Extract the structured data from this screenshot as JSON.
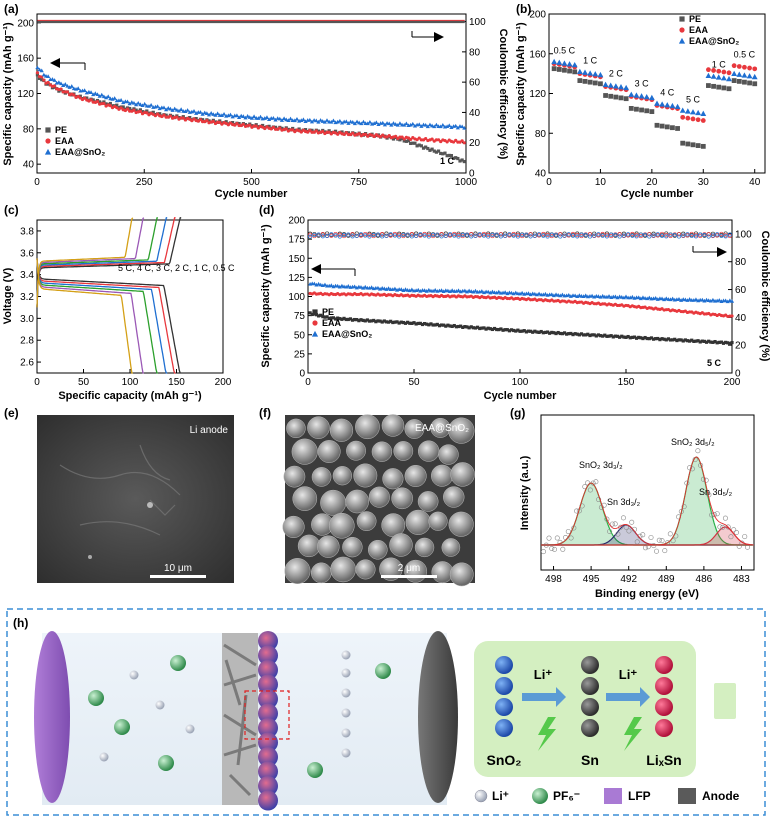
{
  "panels": {
    "a": {
      "label": "(a)"
    },
    "b": {
      "label": "(b)"
    },
    "c": {
      "label": "(c)"
    },
    "d": {
      "label": "(d)"
    },
    "e": {
      "label": "(e)",
      "title": "Li anode",
      "scale": "10 μm"
    },
    "f": {
      "label": "(f)",
      "title": "EAA@SnO₂",
      "scale": "2 μm"
    },
    "g": {
      "label": "(g)"
    },
    "h": {
      "label": "(h)"
    }
  },
  "chart_data": [
    {
      "id": "a",
      "type": "line",
      "xlabel": "Cycle number",
      "ylabel": "Specific capacity (mAh g⁻¹)",
      "y2label": "Coulombic efficiency (%)",
      "xlim": [
        0,
        1000
      ],
      "ylim": [
        30,
        210
      ],
      "y2lim": [
        0,
        105
      ],
      "xticks": [
        0,
        250,
        500,
        750,
        1000
      ],
      "yticks": [
        40,
        80,
        120,
        160,
        200
      ],
      "y2ticks": [
        0,
        20,
        40,
        60,
        80,
        100
      ],
      "annotation": "1 C",
      "series": [
        {
          "name": "PE",
          "color": "#555555",
          "x": [
            1,
            20,
            50,
            100,
            200,
            300,
            400,
            500,
            600,
            700,
            800,
            850,
            880,
            920,
            960,
            1000
          ],
          "y": [
            140,
            132,
            124,
            116,
            104,
            95,
            89,
            84,
            79,
            76,
            72,
            68,
            63,
            56,
            50,
            42
          ]
        },
        {
          "name": "EAA",
          "color": "#e8383d",
          "x": [
            1,
            20,
            50,
            100,
            200,
            300,
            400,
            500,
            600,
            700,
            800,
            900,
            1000
          ],
          "y": [
            143,
            133,
            125,
            115,
            102,
            94,
            88,
            83,
            78,
            75,
            72,
            68,
            65
          ]
        },
        {
          "name": "EAA@SnO2",
          "color": "#1f6fd1",
          "x": [
            1,
            20,
            50,
            100,
            200,
            300,
            400,
            500,
            600,
            700,
            800,
            900,
            1000
          ],
          "y": [
            150,
            140,
            132,
            124,
            111,
            103,
            97,
            93,
            90,
            88,
            86,
            84,
            82
          ]
        }
      ],
      "ce": {
        "value": 100
      }
    },
    {
      "id": "b",
      "type": "scatter",
      "xlabel": "Cycle number",
      "ylabel": "Specific capacity (mAh g⁻¹)",
      "xlim": [
        0,
        42
      ],
      "ylim": [
        40,
        200
      ],
      "xticks": [
        0,
        10,
        20,
        30,
        40
      ],
      "yticks": [
        40,
        80,
        120,
        160,
        200
      ],
      "rates": [
        "0.5 C",
        "1 C",
        "2 C",
        "3 C",
        "4 C",
        "5 C",
        "1 C",
        "0.5 C"
      ],
      "series": [
        {
          "name": "PE",
          "color": "#555555",
          "levels": [
            145,
            133,
            118,
            105,
            88,
            70,
            128,
            133
          ]
        },
        {
          "name": "EAA",
          "color": "#e8383d",
          "levels": [
            150,
            140,
            127,
            117,
            108,
            96,
            144,
            148
          ]
        },
        {
          "name": "EAA@SnO2",
          "color": "#1f6fd1",
          "levels": [
            152,
            142,
            129,
            119,
            110,
            103,
            138,
            140
          ]
        }
      ]
    },
    {
      "id": "c",
      "type": "line",
      "xlabel": "Specific capacity (mAh g⁻¹)",
      "ylabel": "Voltage (V)",
      "xlim": [
        0,
        200
      ],
      "ylim": [
        2.5,
        3.9
      ],
      "xticks": [
        0,
        50,
        100,
        150,
        200
      ],
      "yticks": [
        2.6,
        2.8,
        3.0,
        3.2,
        3.4,
        3.6,
        3.8
      ],
      "annotation": "5 C, 4 C, 3 C, 2 C, 1 C, 0.5 C",
      "rates": [
        "0.5 C",
        "1 C",
        "2 C",
        "3 C",
        "4 C",
        "5 C"
      ],
      "colors": [
        "#333333",
        "#e8383d",
        "#1f6fd1",
        "#2ca02c",
        "#9b59b6",
        "#d4a017"
      ],
      "capacities": [
        155,
        149,
        140,
        130,
        115,
        103
      ]
    },
    {
      "id": "d",
      "type": "line",
      "xlabel": "Cycle number",
      "ylabel": "Specific capacity (mAh g⁻¹)",
      "y2label": "Coulombic efficiency (%)",
      "xlim": [
        0,
        200
      ],
      "ylim": [
        0,
        200
      ],
      "y2lim": [
        0,
        110
      ],
      "xticks": [
        0,
        50,
        100,
        150,
        200
      ],
      "yticks": [
        0,
        25,
        50,
        75,
        100,
        125,
        150,
        175,
        200
      ],
      "y2ticks": [
        0,
        20,
        40,
        60,
        80,
        100
      ],
      "annotation": "5 C",
      "series": [
        {
          "name": "PE",
          "color": "#333333",
          "x": [
            1,
            10,
            25,
            50,
            75,
            100,
            125,
            150,
            175,
            200
          ],
          "y": [
            78,
            72,
            69,
            65,
            60,
            55,
            51,
            47,
            43,
            39
          ]
        },
        {
          "name": "EAA",
          "color": "#e8383d",
          "x": [
            1,
            10,
            25,
            50,
            75,
            100,
            125,
            150,
            175,
            200
          ],
          "y": [
            104,
            103,
            103,
            101,
            100,
            97,
            93,
            88,
            81,
            74
          ]
        },
        {
          "name": "EAA@SnO2",
          "color": "#1f6fd1",
          "x": [
            1,
            10,
            25,
            50,
            75,
            100,
            125,
            150,
            175,
            200
          ],
          "y": [
            117,
            114,
            112,
            108,
            107,
            104,
            101,
            99,
            96,
            94
          ]
        }
      ],
      "ce": {
        "value": 100
      }
    },
    {
      "id": "g",
      "type": "line",
      "xlabel": "Binding energy (eV)",
      "ylabel": "Intensity (a.u.)",
      "xlim": [
        499,
        482
      ],
      "xticks": [
        498,
        495,
        492,
        489,
        486,
        483
      ],
      "peaks": [
        "SnO₂ 3d₃/₂",
        "Sn 3d₃/₂",
        "SnO₂ 3d₅/₂",
        "Sn 3d₅/₂"
      ]
    }
  ],
  "schematic": {
    "steps": [
      "SnO₂",
      "Sn",
      "LiₓSn"
    ],
    "arrow_label": "Li⁺",
    "legend": [
      "Li⁺",
      "PF₆⁻",
      "LFP",
      "Anode"
    ]
  }
}
